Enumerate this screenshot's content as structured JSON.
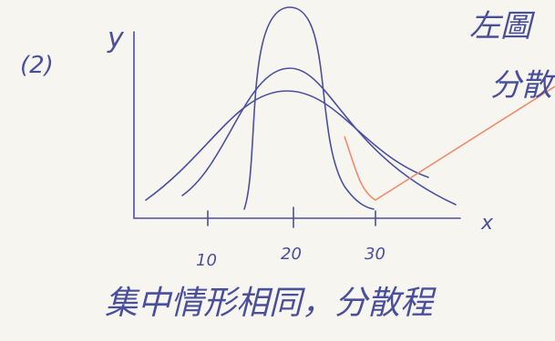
{
  "label": "(2)",
  "axes": {
    "y": "y",
    "x": "x",
    "ticks": [
      "10",
      "20",
      "30"
    ]
  },
  "notes": {
    "top_right": [
      "左圖",
      "分散"
    ],
    "bottom": "集中情形相同，分散程"
  }
}
